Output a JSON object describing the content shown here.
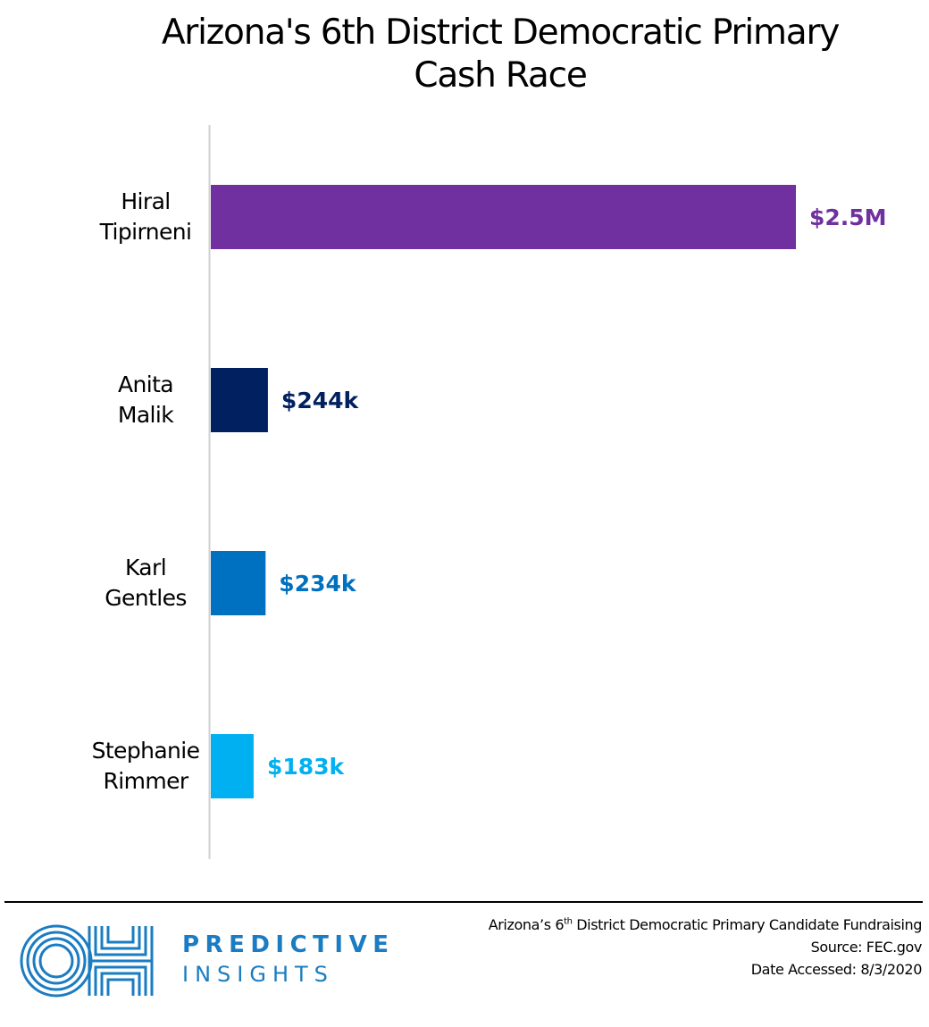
{
  "title_lines": [
    "Arizona's 6th District Democratic Primary",
    "Cash Race"
  ],
  "chart_data": {
    "type": "bar",
    "orientation": "horizontal",
    "title": "Arizona's 6th District Democratic Primary Cash Race",
    "categories": [
      "Hiral Tipirneni",
      "Anita Malik",
      "Karl Gentles",
      "Stephanie Rimmer"
    ],
    "category_lines": [
      [
        "Hiral",
        "Tipirneni"
      ],
      [
        "Anita",
        "Malik"
      ],
      [
        "Karl",
        "Gentles"
      ],
      [
        "Stephanie",
        "Rimmer"
      ]
    ],
    "values": [
      2500000,
      244000,
      234000,
      183000
    ],
    "data_labels": [
      "$2.5M",
      "$244k",
      "$234k",
      "$183k"
    ],
    "colors": [
      "#7030a0",
      "#002060",
      "#0070c0",
      "#00b0f0"
    ],
    "xlim": [
      0,
      2500000
    ],
    "grid": false,
    "legend": "none"
  },
  "footer": {
    "source_line1_pre": "Arizona’s 6",
    "source_line1_sup": "th",
    "source_line1_post": " District Democratic Primary Candidate Fundraising",
    "source_line2": "Source: FEC.gov",
    "source_line3": "Date Accessed: 8/3/2020"
  },
  "logo": {
    "brand_line1": "PREDICTIVE",
    "brand_line2": "INSIGHTS",
    "mark_letters": "OH",
    "color": "#1a7cc2"
  }
}
